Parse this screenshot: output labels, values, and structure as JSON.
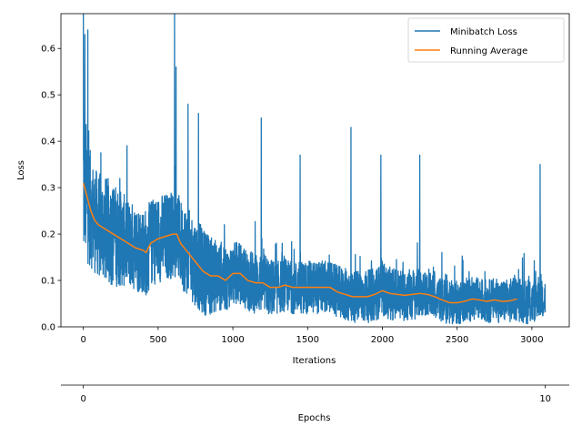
{
  "chart_data": {
    "type": "line",
    "xlabel": "Iterations",
    "ylabel": "Loss",
    "secondary_xlabel": "Epochs",
    "xlim": [
      -150,
      3250
    ],
    "ylim": [
      0,
      0.675
    ],
    "x_ticks": [
      0,
      500,
      1000,
      1500,
      2000,
      2500,
      3000
    ],
    "x_tick_labels": [
      "0",
      "500",
      "1000",
      "1500",
      "2000",
      "2500",
      "3000"
    ],
    "y_ticks": [
      0.0,
      0.1,
      0.2,
      0.3,
      0.4,
      0.5,
      0.6
    ],
    "y_tick_labels": [
      "0.0",
      "0.1",
      "0.2",
      "0.3",
      "0.4",
      "0.5",
      "0.6"
    ],
    "secondary_x_ticks": [
      0,
      10
    ],
    "secondary_x_tick_labels": [
      "0",
      "10"
    ],
    "legend_position": "top-right",
    "series": [
      {
        "name": "Minibatch Loss",
        "color": "#1f77b4",
        "x": [
          0,
          25,
          50,
          75,
          100,
          150,
          200,
          250,
          300,
          350,
          400,
          450,
          500,
          550,
          600,
          610,
          650,
          700,
          750,
          800,
          850,
          900,
          950,
          1000,
          1100,
          1200,
          1300,
          1400,
          1500,
          1600,
          1700,
          1800,
          1900,
          2000,
          2100,
          2200,
          2300,
          2400,
          2500,
          2600,
          2700,
          2800,
          2900,
          3000,
          3050,
          3090
        ],
        "y": [
          0.68,
          0.42,
          0.3,
          0.24,
          0.22,
          0.22,
          0.2,
          0.18,
          0.17,
          0.16,
          0.15,
          0.16,
          0.18,
          0.19,
          0.2,
          0.68,
          0.17,
          0.15,
          0.13,
          0.12,
          0.11,
          0.1,
          0.1,
          0.11,
          0.1,
          0.09,
          0.09,
          0.09,
          0.09,
          0.08,
          0.07,
          0.07,
          0.07,
          0.07,
          0.07,
          0.07,
          0.06,
          0.06,
          0.06,
          0.06,
          0.06,
          0.05,
          0.06,
          0.05,
          0.07,
          0.06
        ],
        "spread": [
          0.2,
          0.15,
          0.13,
          0.12,
          0.12,
          0.12,
          0.12,
          0.11,
          0.1,
          0.1,
          0.1,
          0.1,
          0.1,
          0.1,
          0.1,
          0.1,
          0.1,
          0.1,
          0.1,
          0.1,
          0.09,
          0.08,
          0.07,
          0.07,
          0.07,
          0.07,
          0.06,
          0.06,
          0.06,
          0.06,
          0.06,
          0.06,
          0.06,
          0.06,
          0.06,
          0.06,
          0.05,
          0.05,
          0.05,
          0.05,
          0.05,
          0.05,
          0.05,
          0.05,
          0.05,
          0.05
        ],
        "spikes": [
          [
            0,
            0.68
          ],
          [
            10,
            0.63
          ],
          [
            30,
            0.64
          ],
          [
            610,
            0.68
          ],
          [
            620,
            0.56
          ],
          [
            700,
            0.48
          ],
          [
            770,
            0.46
          ],
          [
            1190,
            0.45
          ],
          [
            1450,
            0.37
          ],
          [
            1790,
            0.43
          ],
          [
            1990,
            0.37
          ],
          [
            2250,
            0.37
          ],
          [
            3055,
            0.35
          ]
        ],
        "n_points": 3090
      },
      {
        "name": "Running Average",
        "color": "#ff7f0e",
        "x": [
          0,
          25,
          50,
          75,
          100,
          150,
          200,
          250,
          300,
          350,
          400,
          420,
          450,
          500,
          550,
          600,
          625,
          650,
          700,
          750,
          800,
          850,
          900,
          950,
          1000,
          1050,
          1100,
          1150,
          1200,
          1250,
          1300,
          1350,
          1400,
          1500,
          1600,
          1650,
          1700,
          1750,
          1800,
          1900,
          1950,
          2000,
          2050,
          2100,
          2150,
          2200,
          2250,
          2300,
          2350,
          2400,
          2450,
          2500,
          2550,
          2600,
          2650,
          2700,
          2750,
          2800,
          2850,
          2900
        ],
        "y": [
          0.31,
          0.28,
          0.25,
          0.23,
          0.22,
          0.21,
          0.2,
          0.19,
          0.18,
          0.17,
          0.165,
          0.16,
          0.18,
          0.19,
          0.195,
          0.2,
          0.2,
          0.18,
          0.16,
          0.14,
          0.12,
          0.11,
          0.11,
          0.1,
          0.115,
          0.115,
          0.1,
          0.095,
          0.095,
          0.085,
          0.085,
          0.09,
          0.085,
          0.085,
          0.085,
          0.085,
          0.075,
          0.07,
          0.065,
          0.065,
          0.07,
          0.078,
          0.072,
          0.07,
          0.068,
          0.07,
          0.072,
          0.07,
          0.065,
          0.058,
          0.052,
          0.052,
          0.055,
          0.06,
          0.058,
          0.055,
          0.058,
          0.055,
          0.056,
          0.06
        ]
      }
    ]
  },
  "colors": {
    "minibatch": "#1f77b4",
    "running": "#ff7f0e",
    "axis": "#000000",
    "legend_border": "#cccccc"
  }
}
